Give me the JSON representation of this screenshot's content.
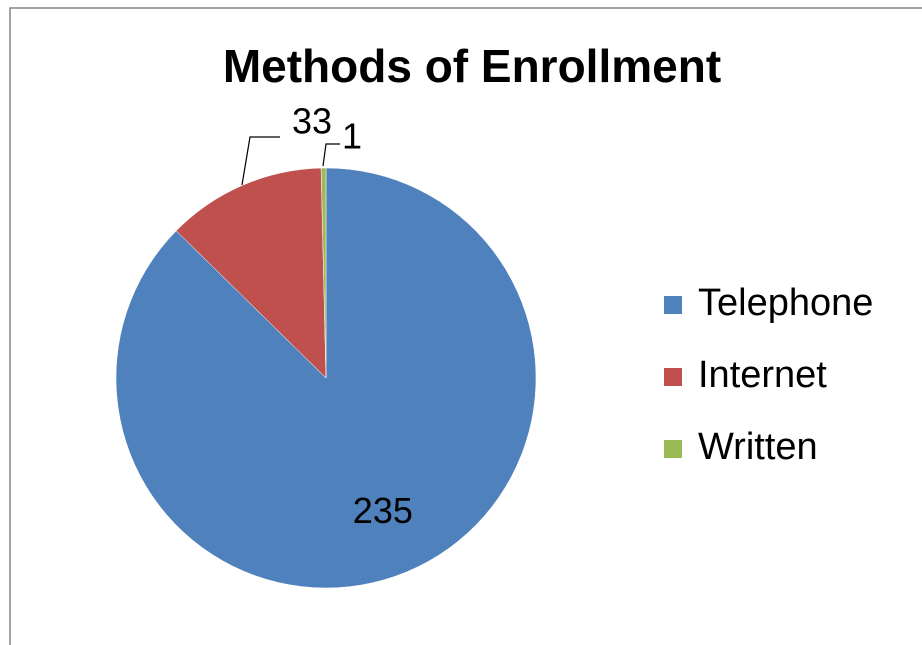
{
  "chart_data": {
    "type": "pie",
    "title": "Methods of Enrollment",
    "categories": [
      "Telephone",
      "Internet",
      "Written"
    ],
    "values": [
      235,
      33,
      1
    ],
    "colors": [
      "#4f81bd",
      "#c0504d",
      "#9bbb59"
    ],
    "legend": "right"
  }
}
